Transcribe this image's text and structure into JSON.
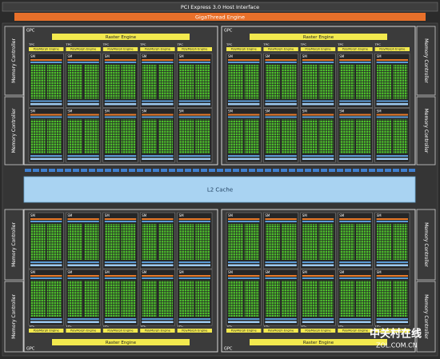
{
  "header": {
    "pcie": "PCI Express 3.0 Host Interface",
    "gigathread": "GigaThread Engine"
  },
  "memory_controllers": {
    "left": [
      "Memory Controller",
      "Memory Controller",
      "Memory Controller",
      "Memory Controller"
    ],
    "right": [
      "Memory Controller",
      "Memory Controller",
      "Memory Controller",
      "Memory Controller"
    ]
  },
  "l2_cache": "L2 Cache",
  "gpcs": [
    {
      "label": "GPC",
      "raster_engine": "Raster Engine",
      "tpcs": [
        {
          "label": "TPC",
          "polymorph_engine": "PolyMorph Engine",
          "sms": [
            "SM",
            "SM"
          ]
        },
        {
          "label": "TPC",
          "polymorph_engine": "PolyMorph Engine",
          "sms": [
            "SM",
            "SM"
          ]
        },
        {
          "label": "TPC",
          "polymorph_engine": "PolyMorph Engine",
          "sms": [
            "SM",
            "SM"
          ]
        },
        {
          "label": "TPC",
          "polymorph_engine": "PolyMorph Engine",
          "sms": [
            "SM",
            "SM"
          ]
        },
        {
          "label": "TPC",
          "polymorph_engine": "PolyMorph Engine",
          "sms": [
            "SM",
            "SM"
          ]
        }
      ]
    },
    {
      "label": "GPC",
      "raster_engine": "Raster Engine",
      "tpcs": [
        {
          "label": "TPC",
          "polymorph_engine": "PolyMorph Engine",
          "sms": [
            "SM",
            "SM"
          ]
        },
        {
          "label": "TPC",
          "polymorph_engine": "PolyMorph Engine",
          "sms": [
            "SM",
            "SM"
          ]
        },
        {
          "label": "TPC",
          "polymorph_engine": "PolyMorph Engine",
          "sms": [
            "SM",
            "SM"
          ]
        },
        {
          "label": "TPC",
          "polymorph_engine": "PolyMorph Engine",
          "sms": [
            "SM",
            "SM"
          ]
        },
        {
          "label": "TPC",
          "polymorph_engine": "PolyMorph Engine",
          "sms": [
            "SM",
            "SM"
          ]
        }
      ]
    },
    {
      "label": "GPC",
      "raster_engine": "Raster Engine",
      "tpcs": [
        {
          "label": "TPC",
          "polymorph_engine": "PolyMorph Engine",
          "sms": [
            "SM",
            "SM"
          ]
        },
        {
          "label": "TPC",
          "polymorph_engine": "PolyMorph Engine",
          "sms": [
            "SM",
            "SM"
          ]
        },
        {
          "label": "TPC",
          "polymorph_engine": "PolyMorph Engine",
          "sms": [
            "SM",
            "SM"
          ]
        },
        {
          "label": "TPC",
          "polymorph_engine": "PolyMorph Engine",
          "sms": [
            "SM",
            "SM"
          ]
        },
        {
          "label": "TPC",
          "polymorph_engine": "PolyMorph Engine",
          "sms": [
            "SM",
            "SM"
          ]
        }
      ]
    },
    {
      "label": "GPC",
      "raster_engine": "Raster Engine",
      "tpcs": [
        {
          "label": "TPC",
          "polymorph_engine": "PolyMorph Engine",
          "sms": [
            "SM",
            "SM"
          ]
        },
        {
          "label": "TPC",
          "polymorph_engine": "PolyMorph Engine",
          "sms": [
            "SM",
            "SM"
          ]
        },
        {
          "label": "TPC",
          "polymorph_engine": "PolyMorph Engine",
          "sms": [
            "SM",
            "SM"
          ]
        },
        {
          "label": "TPC",
          "polymorph_engine": "PolyMorph Engine",
          "sms": [
            "SM",
            "SM"
          ]
        },
        {
          "label": "TPC",
          "polymorph_engine": "PolyMorph Engine",
          "sms": [
            "SM",
            "SM"
          ]
        }
      ]
    }
  ],
  "watermark": {
    "brand": "中关村在线",
    "site": "ZOL.COM.CN"
  }
}
